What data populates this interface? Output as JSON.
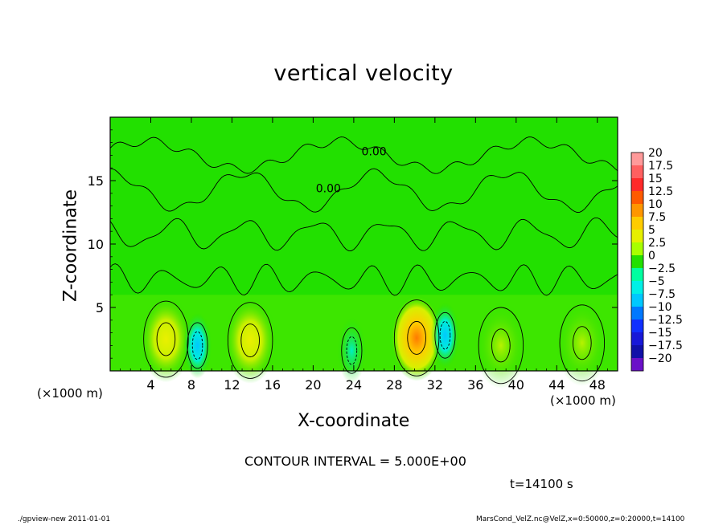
{
  "title": "vertical velocity",
  "xlabel": "X-coordinate",
  "ylabel": "Z-coordinate",
  "x_unit_left": "(×1000 m)",
  "x_unit_right": "(×1000 m)",
  "contour_note": "CONTOUR INTERVAL = 5.000E+00",
  "time_note": "t=14100 s",
  "footer_left": "./gpview-new  2011-01-01",
  "footer_right": "MarsCond_VelZ.nc@VelZ,x=0:50000,z=0:20000,t=14100",
  "chart_data": {
    "type": "heatmap",
    "title": "vertical velocity",
    "xlabel": "X-coordinate",
    "ylabel": "Z-coordinate",
    "xlim": [
      0,
      50
    ],
    "ylim": [
      0,
      20
    ],
    "x_ticks": [
      4,
      8,
      12,
      16,
      20,
      24,
      28,
      32,
      36,
      40,
      44,
      48
    ],
    "y_ticks": [
      5,
      10,
      15
    ],
    "contour_labels": [
      {
        "text": "0.00",
        "x": 26.0,
        "y": 17.3
      },
      {
        "text": "0.00",
        "x": 21.5,
        "y": 14.4
      }
    ],
    "colorbar": {
      "levels": [
        "20",
        "17.5",
        "15",
        "12.5",
        "10",
        "7.5",
        "5",
        "2.5",
        "0",
        "−2.5",
        "−5",
        "−7.5",
        "−10",
        "−12.5",
        "−15",
        "−17.5",
        "−20"
      ],
      "colors": [
        "#ff9a9a",
        "#ff6060",
        "#ff2a2a",
        "#ff5a00",
        "#ff9600",
        "#ffcc00",
        "#e6f000",
        "#a8ff00",
        "#22e000",
        "#00ffa0",
        "#00f0e6",
        "#00c8ff",
        "#0078ff",
        "#1030ff",
        "#1818d8",
        "#1010a8",
        "#6a10c8"
      ]
    },
    "features": [
      {
        "kind": "updraft",
        "x": 5.5,
        "z": 2.5,
        "peak": 5
      },
      {
        "kind": "updraft",
        "x": 13.8,
        "z": 2.4,
        "peak": 5
      },
      {
        "kind": "updraft",
        "x": 30.2,
        "z": 2.6,
        "peak": 10
      },
      {
        "kind": "updraft",
        "x": 38.5,
        "z": 2.0,
        "peak": 2.5
      },
      {
        "kind": "updraft",
        "x": 46.5,
        "z": 2.2,
        "peak": 2.5
      },
      {
        "kind": "downdraft",
        "x": 8.6,
        "z": 2.0,
        "peak": -5
      },
      {
        "kind": "downdraft",
        "x": 23.8,
        "z": 1.6,
        "peak": -2.5
      },
      {
        "kind": "downdraft",
        "x": 33.0,
        "z": 2.8,
        "peak": -5
      }
    ]
  }
}
